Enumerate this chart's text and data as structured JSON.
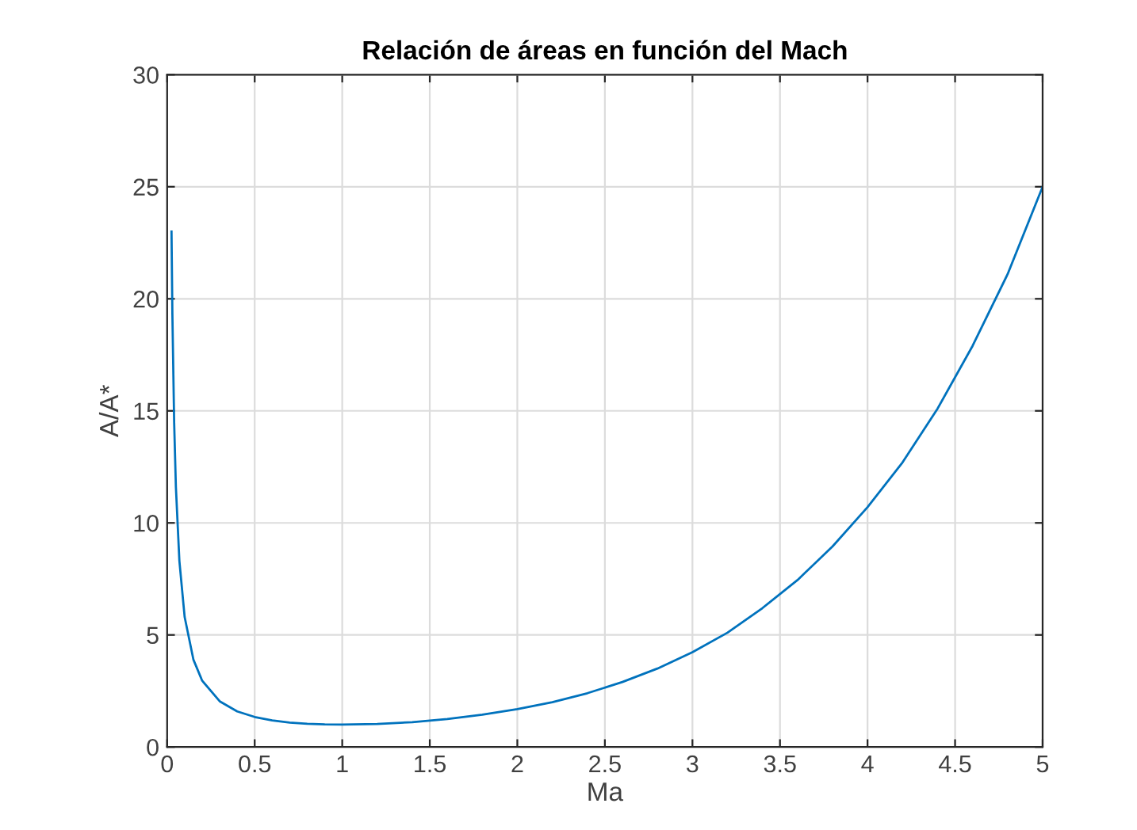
{
  "chart_data": {
    "type": "line",
    "title": "Relación de áreas en función del Mach",
    "xlabel": "Ma",
    "ylabel": "A/A*",
    "x": [
      0.025,
      0.03,
      0.04,
      0.05,
      0.07,
      0.1,
      0.15,
      0.2,
      0.3,
      0.4,
      0.5,
      0.6,
      0.7,
      0.8,
      0.9,
      1.0,
      1.2,
      1.4,
      1.6,
      1.8,
      2.0,
      2.2,
      2.4,
      2.6,
      2.8,
      3.0,
      3.2,
      3.4,
      3.6,
      3.8,
      4.0,
      4.2,
      4.4,
      4.6,
      4.8,
      5.0
    ],
    "series": [
      {
        "color": "#0072bd",
        "values": [
          23,
          19.3,
          14.5,
          11.6,
          8.3,
          5.8,
          3.9,
          2.96,
          2.04,
          1.59,
          1.34,
          1.19,
          1.09,
          1.04,
          1.01,
          1.0,
          1.03,
          1.11,
          1.25,
          1.44,
          1.69,
          2.0,
          2.4,
          2.9,
          3.5,
          4.23,
          5.1,
          6.2,
          7.45,
          8.95,
          10.7,
          12.7,
          15.1,
          17.9,
          21.1,
          25.0
        ]
      }
    ],
    "xlim": [
      0,
      5
    ],
    "ylim": [
      0,
      30
    ],
    "xticks": [
      0,
      0.5,
      1,
      1.5,
      2,
      2.5,
      3,
      3.5,
      4,
      4.5,
      5
    ],
    "yticks": [
      0,
      5,
      10,
      15,
      20,
      25,
      30
    ],
    "grid": true,
    "marker": "none",
    "line_style": "solid"
  }
}
